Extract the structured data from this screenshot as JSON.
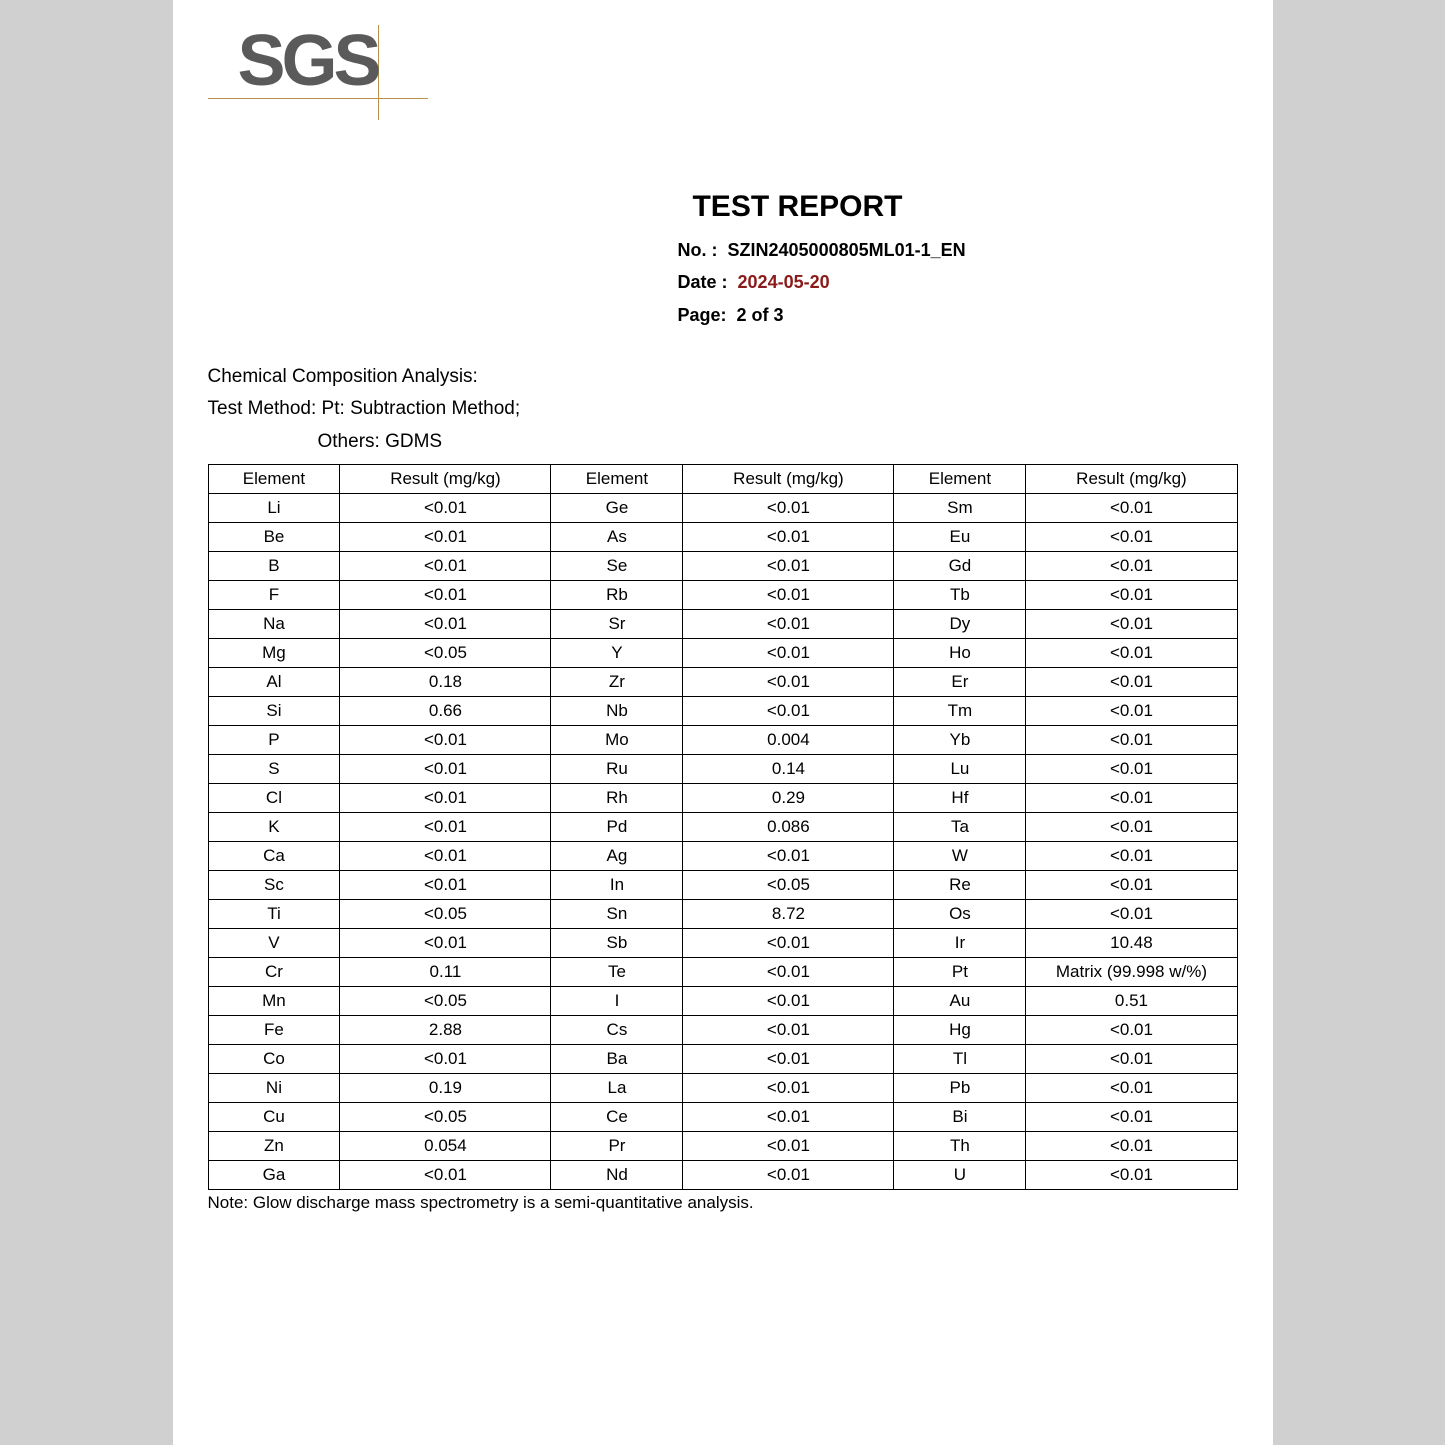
{
  "logo_text": "SGS",
  "title": "TEST REPORT",
  "meta": {
    "no_label": "No.   :",
    "no_value": "SZIN2405000805ML01-1_EN",
    "date_label": "Date :",
    "date_value": "2024-05-20",
    "page_label": "Page:",
    "page_value": "2 of  3"
  },
  "section_title": "Chemical Composition Analysis:",
  "test_method_line": "Test Method: Pt: Subtraction Method;",
  "test_method_others": "Others: GDMS",
  "headers": {
    "element": "Element",
    "result": "Result (mg/kg)"
  },
  "rows": [
    [
      "Li",
      "<0.01",
      "Ge",
      "<0.01",
      "Sm",
      "<0.01"
    ],
    [
      "Be",
      "<0.01",
      "As",
      "<0.01",
      "Eu",
      "<0.01"
    ],
    [
      "B",
      "<0.01",
      "Se",
      "<0.01",
      "Gd",
      "<0.01"
    ],
    [
      "F",
      "<0.01",
      "Rb",
      "<0.01",
      "Tb",
      "<0.01"
    ],
    [
      "Na",
      "<0.01",
      "Sr",
      "<0.01",
      "Dy",
      "<0.01"
    ],
    [
      "Mg",
      "<0.05",
      "Y",
      "<0.01",
      "Ho",
      "<0.01"
    ],
    [
      "Al",
      "0.18",
      "Zr",
      "<0.01",
      "Er",
      "<0.01"
    ],
    [
      "Si",
      "0.66",
      "Nb",
      "<0.01",
      "Tm",
      "<0.01"
    ],
    [
      "P",
      "<0.01",
      "Mo",
      "0.004",
      "Yb",
      "<0.01"
    ],
    [
      "S",
      "<0.01",
      "Ru",
      "0.14",
      "Lu",
      "<0.01"
    ],
    [
      "Cl",
      "<0.01",
      "Rh",
      "0.29",
      "Hf",
      "<0.01"
    ],
    [
      "K",
      "<0.01",
      "Pd",
      "0.086",
      "Ta",
      "<0.01"
    ],
    [
      "Ca",
      "<0.01",
      "Ag",
      "<0.01",
      "W",
      "<0.01"
    ],
    [
      "Sc",
      "<0.01",
      "In",
      "<0.05",
      "Re",
      "<0.01"
    ],
    [
      "Ti",
      "<0.05",
      "Sn",
      "8.72",
      "Os",
      "<0.01"
    ],
    [
      "V",
      "<0.01",
      "Sb",
      "<0.01",
      "Ir",
      "10.48"
    ],
    [
      "Cr",
      "0.11",
      "Te",
      "<0.01",
      "Pt",
      "Matrix (99.998 w/%)"
    ],
    [
      "Mn",
      "<0.05",
      "I",
      "<0.01",
      "Au",
      "0.51"
    ],
    [
      "Fe",
      "2.88",
      "Cs",
      "<0.01",
      "Hg",
      "<0.01"
    ],
    [
      "Co",
      "<0.01",
      "Ba",
      "<0.01",
      "Tl",
      "<0.01"
    ],
    [
      "Ni",
      "0.19",
      "La",
      "<0.01",
      "Pb",
      "<0.01"
    ],
    [
      "Cu",
      "<0.05",
      "Ce",
      "<0.01",
      "Bi",
      "<0.01"
    ],
    [
      "Zn",
      "0.054",
      "Pr",
      "<0.01",
      "Th",
      "<0.01"
    ],
    [
      "Ga",
      "<0.01",
      "Nd",
      "<0.01",
      "U",
      "<0.01"
    ]
  ],
  "note": "Note: Glow discharge mass spectrometry is a semi-quantitative analysis.",
  "colors": {
    "page_bg": "#ffffff",
    "outer_bg": "#d0d0d0",
    "logo_gray": "#5a5a5a",
    "logo_line": "#b8924a",
    "date_color": "#8b1a1a",
    "border": "#000000"
  },
  "fonts": {
    "family": "Arial",
    "title_size": 30,
    "body_size": 17
  }
}
